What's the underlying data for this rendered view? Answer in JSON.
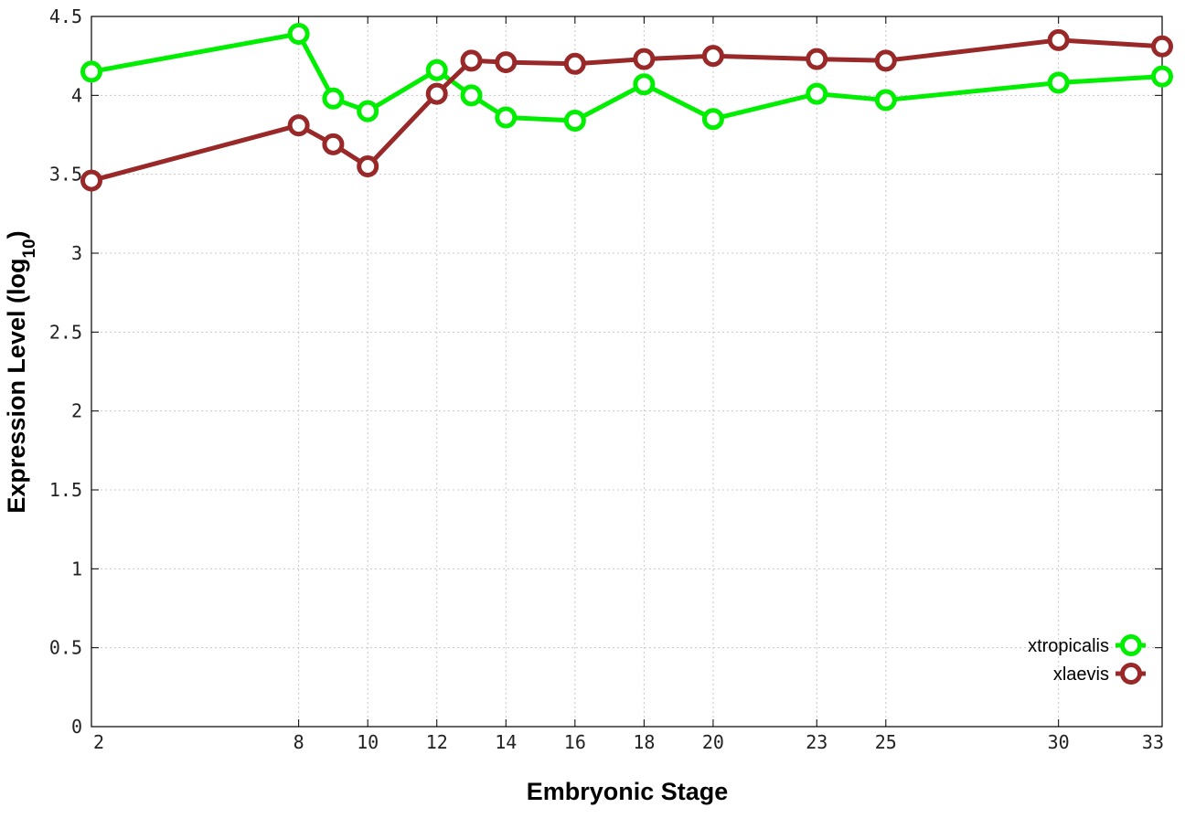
{
  "chart_data": {
    "type": "line",
    "xlabel": "Embryonic Stage",
    "ylabel": "Expression Level",
    "ylabel_sub": "10",
    "ylabel_log_prefix": "log",
    "x_ticks": [
      2,
      8,
      10,
      12,
      14,
      16,
      18,
      20,
      23,
      25,
      30,
      33
    ],
    "y_ticks": [
      "0",
      "0.5",
      "1",
      "1.5",
      "2",
      "2.5",
      "3",
      "3.5",
      "4",
      "4.5"
    ],
    "xlim": [
      2,
      33
    ],
    "ylim": [
      0,
      4.5
    ],
    "grid": true,
    "legend_position": "bottom-right",
    "series": [
      {
        "name": "xtropicalis",
        "color": "#00ee00",
        "x": [
          2,
          8,
          9,
          10,
          12,
          13,
          14,
          16,
          18,
          20,
          23,
          25,
          30,
          33
        ],
        "y": [
          4.15,
          4.39,
          3.98,
          3.9,
          4.16,
          4.0,
          3.86,
          3.84,
          4.07,
          3.85,
          4.01,
          3.97,
          4.08,
          4.12
        ]
      },
      {
        "name": "xlaevis",
        "color": "#992828",
        "x": [
          2,
          8,
          9,
          10,
          12,
          13,
          14,
          16,
          18,
          20,
          23,
          25,
          30,
          33
        ],
        "y": [
          3.46,
          3.81,
          3.69,
          3.55,
          4.01,
          4.22,
          4.21,
          4.2,
          4.23,
          4.25,
          4.23,
          4.22,
          4.35,
          4.31
        ]
      }
    ]
  }
}
